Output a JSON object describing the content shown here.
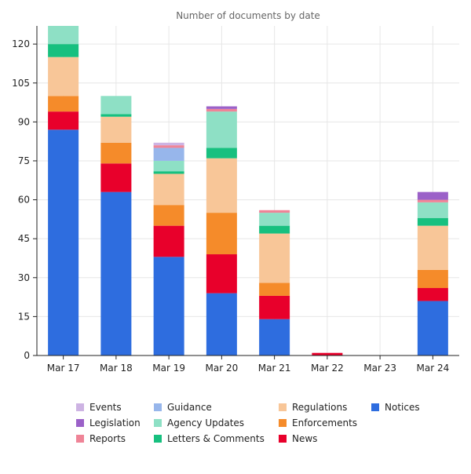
{
  "chart_data": {
    "type": "bar",
    "stacked": true,
    "title": "Number of documents by date",
    "xlabel": "",
    "ylabel": "",
    "ylim": [
      0,
      127
    ],
    "yticks": [
      0,
      15,
      30,
      45,
      60,
      75,
      90,
      105,
      120
    ],
    "grid": true,
    "legend_position": "bottom",
    "categories": [
      "Mar 17",
      "Mar 18",
      "Mar 19",
      "Mar 20",
      "Mar 21",
      "Mar 22",
      "Mar 23",
      "Mar 24"
    ],
    "series": [
      {
        "name": "Notices",
        "color": "#2e6ddf",
        "values": [
          87,
          63,
          38,
          24,
          14,
          0,
          0,
          21
        ]
      },
      {
        "name": "News",
        "color": "#e8002b",
        "values": [
          7,
          11,
          12,
          15,
          9,
          1,
          0,
          5
        ]
      },
      {
        "name": "Enforcements",
        "color": "#f58b2a",
        "values": [
          6,
          8,
          8,
          16,
          5,
          0,
          0,
          7
        ]
      },
      {
        "name": "Regulations",
        "color": "#f8c698",
        "values": [
          15,
          10,
          12,
          21,
          19,
          0,
          0,
          17
        ]
      },
      {
        "name": "Letters & Comments",
        "color": "#17c07f",
        "values": [
          5,
          1,
          1,
          4,
          3,
          0,
          0,
          3
        ]
      },
      {
        "name": "Agency Updates",
        "color": "#8ee0c5",
        "values": [
          7,
          7,
          4,
          14,
          5,
          0,
          0,
          6
        ]
      },
      {
        "name": "Guidance",
        "color": "#97b6eb",
        "values": [
          0,
          0,
          5,
          0,
          0,
          0,
          0,
          0
        ]
      },
      {
        "name": "Reports",
        "color": "#ef8497",
        "values": [
          0,
          0,
          1,
          1,
          1,
          0,
          0,
          1
        ]
      },
      {
        "name": "Legislation",
        "color": "#9b61c8",
        "values": [
          0,
          0,
          0,
          1,
          0,
          0,
          0,
          3
        ]
      },
      {
        "name": "Events",
        "color": "#cdb3e3",
        "values": [
          0,
          0,
          1,
          0,
          0,
          0,
          0,
          0
        ]
      }
    ],
    "legend_order": [
      "Events",
      "Legislation",
      "Reports",
      "Guidance",
      "Agency Updates",
      "Letters & Comments",
      "Regulations",
      "Enforcements",
      "News",
      "Notices"
    ]
  }
}
